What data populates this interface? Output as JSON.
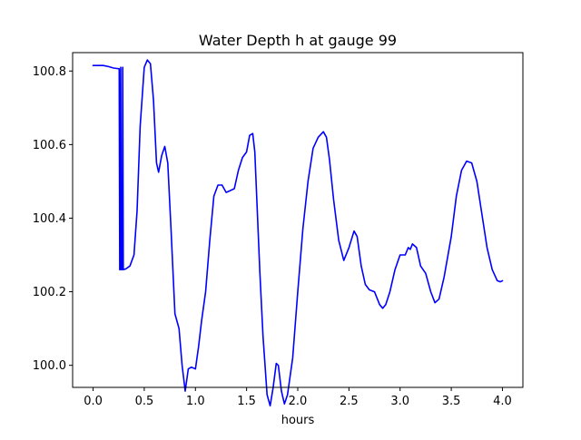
{
  "chart_data": {
    "type": "line",
    "title": "Water Depth h at gauge 99",
    "xlabel": "hours",
    "ylabel": "",
    "xlim": [
      -0.2,
      4.2
    ],
    "ylim": [
      99.94,
      100.85
    ],
    "xticks": [
      0.0,
      0.5,
      1.0,
      1.5,
      2.0,
      2.5,
      3.0,
      3.5,
      4.0
    ],
    "xtick_labels": [
      "0.0",
      "0.5",
      "1.0",
      "1.5",
      "2.0",
      "2.5",
      "3.0",
      "3.5",
      "4.0"
    ],
    "yticks": [
      100.0,
      100.2,
      100.4,
      100.6,
      100.8
    ],
    "ytick_labels": [
      "100.0",
      "100.2",
      "100.4",
      "100.6",
      "100.8"
    ],
    "grid": false,
    "series": [
      {
        "color": "#0000ff",
        "points": [
          [
            0.0,
            100.815
          ],
          [
            0.05,
            100.815
          ],
          [
            0.1,
            100.815
          ],
          [
            0.15,
            100.812
          ],
          [
            0.2,
            100.808
          ],
          [
            0.255,
            100.806
          ],
          [
            0.26,
            100.26
          ],
          [
            0.265,
            100.26
          ],
          [
            0.27,
            100.81
          ],
          [
            0.275,
            100.26
          ],
          [
            0.285,
            100.26
          ],
          [
            0.29,
            100.81
          ],
          [
            0.295,
            100.26
          ],
          [
            0.32,
            100.262
          ],
          [
            0.36,
            100.27
          ],
          [
            0.4,
            100.3
          ],
          [
            0.43,
            100.42
          ],
          [
            0.46,
            100.65
          ],
          [
            0.5,
            100.81
          ],
          [
            0.53,
            100.83
          ],
          [
            0.56,
            100.82
          ],
          [
            0.59,
            100.72
          ],
          [
            0.62,
            100.55
          ],
          [
            0.64,
            100.525
          ],
          [
            0.67,
            100.57
          ],
          [
            0.7,
            100.595
          ],
          [
            0.73,
            100.55
          ],
          [
            0.76,
            100.38
          ],
          [
            0.8,
            100.14
          ],
          [
            0.84,
            100.1
          ],
          [
            0.87,
            100.0
          ],
          [
            0.9,
            99.93
          ],
          [
            0.93,
            99.99
          ],
          [
            0.96,
            99.995
          ],
          [
            1.0,
            99.99
          ],
          [
            1.03,
            100.05
          ],
          [
            1.06,
            100.12
          ],
          [
            1.1,
            100.2
          ],
          [
            1.14,
            100.34
          ],
          [
            1.18,
            100.46
          ],
          [
            1.22,
            100.49
          ],
          [
            1.26,
            100.49
          ],
          [
            1.3,
            100.47
          ],
          [
            1.34,
            100.475
          ],
          [
            1.38,
            100.48
          ],
          [
            1.42,
            100.53
          ],
          [
            1.46,
            100.565
          ],
          [
            1.5,
            100.58
          ],
          [
            1.53,
            100.625
          ],
          [
            1.56,
            100.63
          ],
          [
            1.58,
            100.58
          ],
          [
            1.6,
            100.45
          ],
          [
            1.63,
            100.25
          ],
          [
            1.66,
            100.08
          ],
          [
            1.7,
            99.92
          ],
          [
            1.73,
            99.89
          ],
          [
            1.76,
            99.94
          ],
          [
            1.79,
            100.005
          ],
          [
            1.81,
            100.0
          ],
          [
            1.84,
            99.93
          ],
          [
            1.87,
            99.895
          ],
          [
            1.9,
            99.92
          ],
          [
            1.95,
            100.02
          ],
          [
            2.0,
            100.2
          ],
          [
            2.05,
            100.37
          ],
          [
            2.1,
            100.5
          ],
          [
            2.15,
            100.59
          ],
          [
            2.2,
            100.62
          ],
          [
            2.25,
            100.635
          ],
          [
            2.28,
            100.62
          ],
          [
            2.31,
            100.56
          ],
          [
            2.35,
            100.45
          ],
          [
            2.4,
            100.34
          ],
          [
            2.45,
            100.285
          ],
          [
            2.5,
            100.32
          ],
          [
            2.55,
            100.365
          ],
          [
            2.58,
            100.35
          ],
          [
            2.62,
            100.27
          ],
          [
            2.66,
            100.22
          ],
          [
            2.7,
            100.205
          ],
          [
            2.75,
            100.2
          ],
          [
            2.8,
            100.165
          ],
          [
            2.83,
            100.155
          ],
          [
            2.86,
            100.165
          ],
          [
            2.9,
            100.2
          ],
          [
            2.95,
            100.26
          ],
          [
            3.0,
            100.3
          ],
          [
            3.05,
            100.3
          ],
          [
            3.08,
            100.32
          ],
          [
            3.1,
            100.315
          ],
          [
            3.12,
            100.33
          ],
          [
            3.16,
            100.32
          ],
          [
            3.2,
            100.27
          ],
          [
            3.25,
            100.25
          ],
          [
            3.3,
            100.2
          ],
          [
            3.34,
            100.17
          ],
          [
            3.38,
            100.18
          ],
          [
            3.43,
            100.24
          ],
          [
            3.5,
            100.35
          ],
          [
            3.55,
            100.46
          ],
          [
            3.6,
            100.53
          ],
          [
            3.65,
            100.555
          ],
          [
            3.7,
            100.55
          ],
          [
            3.75,
            100.5
          ],
          [
            3.8,
            100.41
          ],
          [
            3.85,
            100.32
          ],
          [
            3.9,
            100.26
          ],
          [
            3.95,
            100.23
          ],
          [
            3.98,
            100.227
          ],
          [
            4.0,
            100.23
          ]
        ]
      }
    ]
  }
}
